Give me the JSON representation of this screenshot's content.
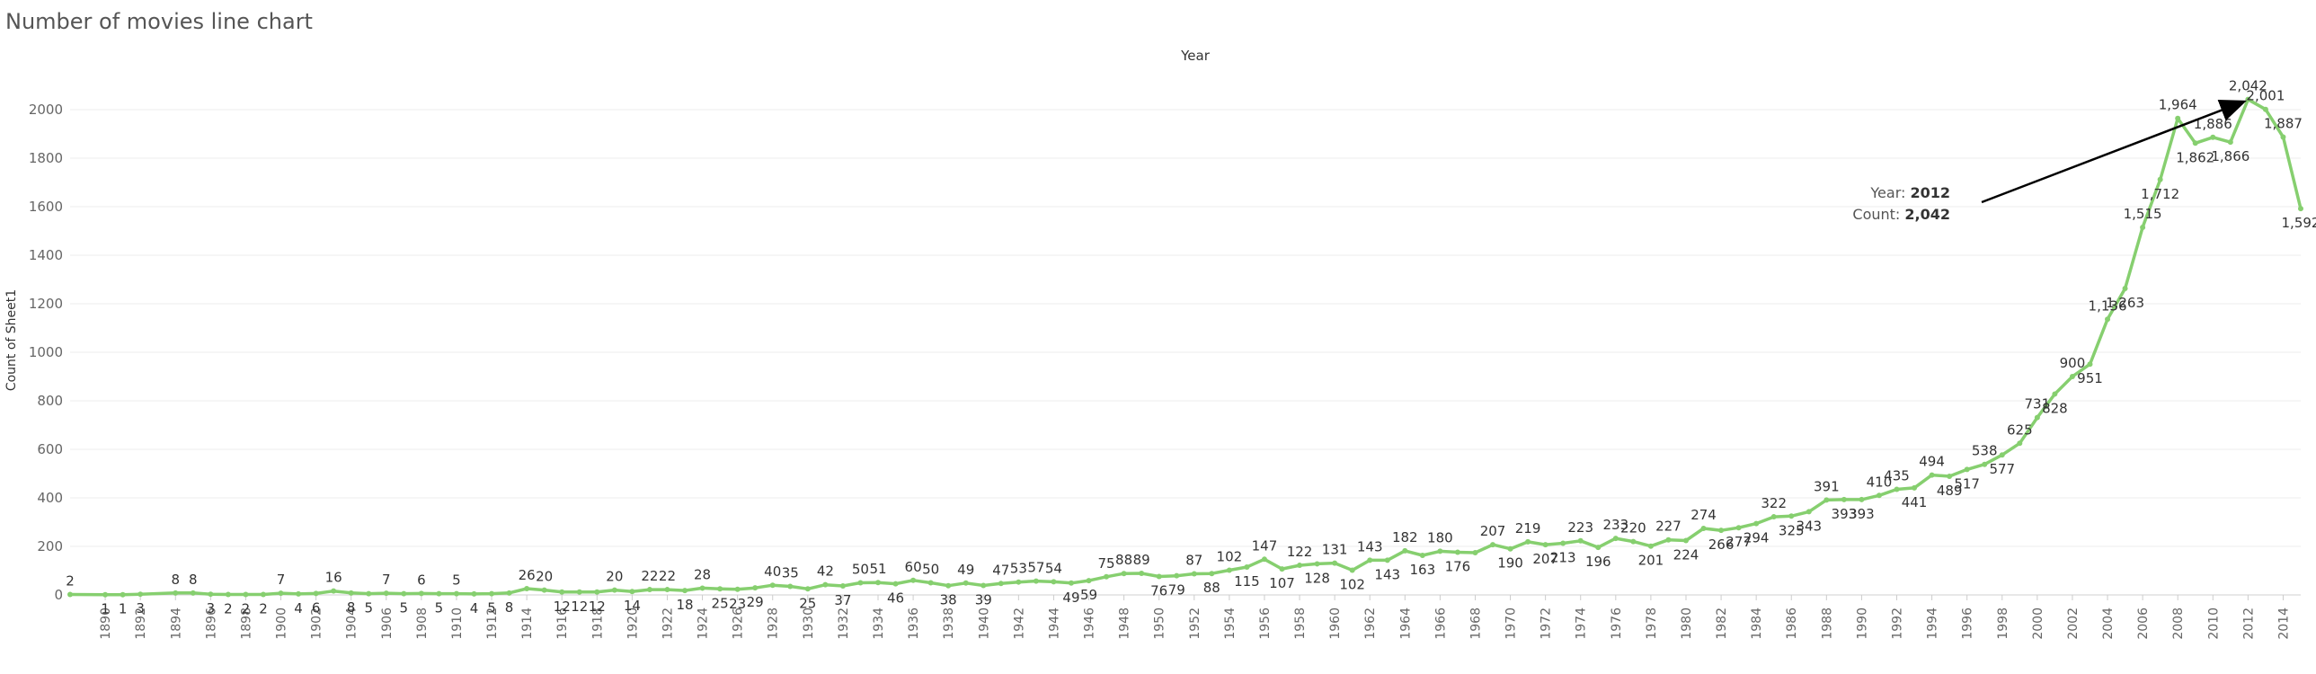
{
  "title": "Number of movies line chart",
  "chart_data": {
    "type": "line",
    "title": "Number of movies line chart",
    "top_label": "Year",
    "xlabel": "",
    "ylabel": "Count of Sheet1",
    "ylim": [
      0,
      2100
    ],
    "yticks": [
      0,
      200,
      400,
      600,
      800,
      1000,
      1200,
      1400,
      1600,
      1800,
      2000
    ],
    "xlim": [
      1888,
      2015
    ],
    "xticks": [
      1890,
      1892,
      1894,
      1896,
      1898,
      1900,
      1902,
      1904,
      1906,
      1908,
      1910,
      1912,
      1914,
      1916,
      1918,
      1920,
      1922,
      1924,
      1926,
      1928,
      1930,
      1932,
      1934,
      1936,
      1938,
      1940,
      1942,
      1944,
      1946,
      1948,
      1950,
      1952,
      1954,
      1956,
      1958,
      1960,
      1962,
      1964,
      1966,
      1968,
      1970,
      1972,
      1974,
      1976,
      1978,
      1980,
      1982,
      1984,
      1986,
      1988,
      1990,
      1992,
      1994,
      1996,
      1998,
      2000,
      2002,
      2004,
      2006,
      2008,
      2010,
      2012,
      2014
    ],
    "grid": "horizontal",
    "color": "#86cf6f",
    "x": [
      1888,
      1890,
      1891,
      1892,
      1894,
      1895,
      1896,
      1897,
      1898,
      1899,
      1900,
      1901,
      1902,
      1903,
      1904,
      1905,
      1906,
      1907,
      1908,
      1909,
      1910,
      1911,
      1912,
      1913,
      1914,
      1915,
      1916,
      1917,
      1918,
      1919,
      1920,
      1921,
      1922,
      1923,
      1924,
      1925,
      1926,
      1927,
      1928,
      1929,
      1930,
      1931,
      1932,
      1933,
      1934,
      1935,
      1936,
      1937,
      1938,
      1939,
      1940,
      1941,
      1942,
      1943,
      1944,
      1945,
      1946,
      1947,
      1948,
      1949,
      1950,
      1951,
      1952,
      1953,
      1954,
      1955,
      1956,
      1957,
      1958,
      1959,
      1960,
      1961,
      1962,
      1963,
      1964,
      1965,
      1966,
      1967,
      1968,
      1969,
      1970,
      1971,
      1972,
      1973,
      1974,
      1975,
      1976,
      1977,
      1978,
      1979,
      1980,
      1981,
      1982,
      1983,
      1984,
      1985,
      1986,
      1987,
      1988,
      1989,
      1990,
      1991,
      1992,
      1993,
      1994,
      1995,
      1996,
      1997,
      1998,
      1999,
      2000,
      2001,
      2002,
      2003,
      2004,
      2005,
      2006,
      2007,
      2008,
      2009,
      2010,
      2011,
      2012,
      2013,
      2014,
      2015
    ],
    "values": [
      2,
      1,
      1,
      3,
      8,
      8,
      3,
      2,
      2,
      2,
      7,
      4,
      6,
      16,
      8,
      5,
      7,
      5,
      6,
      5,
      5,
      4,
      5,
      8,
      26,
      20,
      12,
      12,
      12,
      20,
      14,
      22,
      22,
      18,
      28,
      25,
      23,
      29,
      40,
      35,
      25,
      42,
      37,
      50,
      51,
      46,
      60,
      50,
      38,
      49,
      39,
      47,
      53,
      57,
      54,
      49,
      59,
      75,
      88,
      89,
      76,
      79,
      87,
      88,
      102,
      115,
      147,
      107,
      122,
      128,
      131,
      102,
      143,
      143,
      182,
      163,
      180,
      176,
      174,
      207,
      190,
      219,
      207,
      213,
      223,
      196,
      233,
      220,
      201,
      227,
      224,
      274,
      266,
      277,
      294,
      322,
      325,
      343,
      391,
      393,
      393,
      410,
      435,
      441,
      494,
      489,
      517,
      538,
      577,
      625,
      731,
      828,
      900,
      951,
      1136,
      1263,
      1515,
      1712,
      1964,
      1862,
      1886,
      1866,
      2042,
      2001,
      1887,
      1592
    ],
    "labels": [
      "2",
      "1",
      "1",
      "3",
      "8",
      "8",
      "3",
      "2",
      "2",
      "2",
      "7",
      "4",
      "6",
      "16",
      "8",
      "5",
      "7",
      "5",
      "6",
      "5",
      "5",
      "4",
      "5",
      "8",
      "26",
      "20",
      "12",
      "12",
      "12",
      "20",
      "14",
      "22",
      "22",
      "18",
      "28",
      "25",
      "23",
      "29",
      "40",
      "35",
      "25",
      "42",
      "37",
      "50",
      "51",
      "46",
      "60",
      "50",
      "38",
      "49",
      "39",
      "47",
      "53",
      "57",
      "54",
      "49",
      "59",
      "75",
      "88",
      "89",
      "76",
      "79",
      "87",
      "88",
      "102",
      "115",
      "147",
      "107",
      "122",
      "128",
      "131",
      "102",
      "143",
      "143",
      "182",
      "163",
      "180",
      "176",
      "",
      "207",
      "190",
      "219",
      "207",
      "213",
      "223",
      "196",
      "233",
      "220",
      "201",
      "227",
      "224",
      "274",
      "266",
      "277",
      "294",
      "322",
      "325",
      "343",
      "391",
      "393",
      "393",
      "410",
      "435",
      "441",
      "494",
      "489",
      "517",
      "538",
      "577",
      "625",
      "731",
      "828",
      "900",
      "951",
      "1,136",
      "1,263",
      "1,515",
      "1,712",
      "1,964",
      "1,862",
      "1,886",
      "1,866",
      "2,042",
      "2,001",
      "1,887",
      "1,592"
    ],
    "label_pos": [
      "a",
      "b",
      "b",
      "b",
      "a",
      "a",
      "b",
      "b",
      "b",
      "b",
      "a",
      "b",
      "b",
      "a",
      "b",
      "b",
      "a",
      "b",
      "a",
      "b",
      "a",
      "b",
      "b",
      "b",
      "a",
      "a",
      "b",
      "b",
      "b",
      "a",
      "b",
      "a",
      "a",
      "b",
      "a",
      "b",
      "b",
      "b",
      "a",
      "a",
      "b",
      "a",
      "b",
      "a",
      "a",
      "b",
      "a",
      "a",
      "b",
      "a",
      "b",
      "a",
      "a",
      "a",
      "a",
      "b",
      "b",
      "a",
      "a",
      "a",
      "b",
      "b",
      "a",
      "b",
      "a",
      "b",
      "a",
      "b",
      "a",
      "b",
      "a",
      "b",
      "a",
      "b",
      "a",
      "b",
      "a",
      "b",
      "a",
      "a",
      "b",
      "a",
      "b",
      "b",
      "a",
      "b",
      "a",
      "a",
      "b",
      "a",
      "b",
      "a",
      "b",
      "b",
      "b",
      "a",
      "b",
      "b",
      "a",
      "b",
      "b",
      "a",
      "a",
      "b",
      "a",
      "b",
      "b",
      "a",
      "b",
      "a",
      "a",
      "b",
      "a",
      "b",
      "a",
      "b",
      "a",
      "b",
      "a",
      "b",
      "a",
      "b",
      "a",
      "a",
      "a",
      "b"
    ],
    "annotation": {
      "year_key": "Year:",
      "year_value": "2012",
      "count_key": "Count:",
      "count_value": "2,042",
      "x": 2012,
      "y": 2042
    }
  }
}
